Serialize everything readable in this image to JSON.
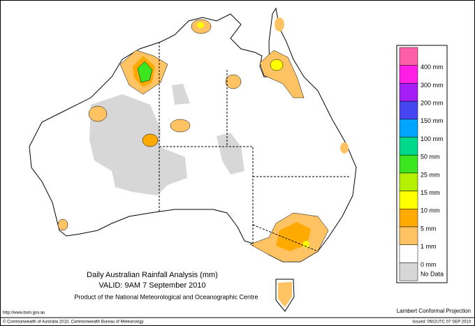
{
  "header": {
    "title": "Daily Australian Rainfall Analysis (mm)",
    "valid": "VALID: 9AM  7 September 2010",
    "product": "Product of the National Meteorological and Oceanographic Centre"
  },
  "legend": [
    {
      "label": "400 mm",
      "color": "#ff5fa8"
    },
    {
      "label": "300 mm",
      "color": "#ff1ee6"
    },
    {
      "label": "200 mm",
      "color": "#a51ef5"
    },
    {
      "label": "150 mm",
      "color": "#4646f0"
    },
    {
      "label": "100 mm",
      "color": "#00a5ff"
    },
    {
      "label": "50 mm",
      "color": "#00d98c"
    },
    {
      "label": "25 mm",
      "color": "#3ce61e"
    },
    {
      "label": "15 mm",
      "color": "#b4f000"
    },
    {
      "label": "10 mm",
      "color": "#ffff00"
    },
    {
      "label": "5 mm",
      "color": "#ffaa00"
    },
    {
      "label": "1 mm",
      "color": "#ffc364"
    },
    {
      "label": "0 mm",
      "color": "#ffffff"
    },
    {
      "label": "No Data",
      "color": "#d7d7d7"
    }
  ],
  "footer": {
    "url": "http://www.bom.gov.au",
    "copyright": "© Commonwealth of Australia 2010, Commonwealth Bureau of Meteorology",
    "projection": "Lambert Conformal Projection",
    "issued": "Issued: 0502UTC 07 SEP 2010"
  }
}
